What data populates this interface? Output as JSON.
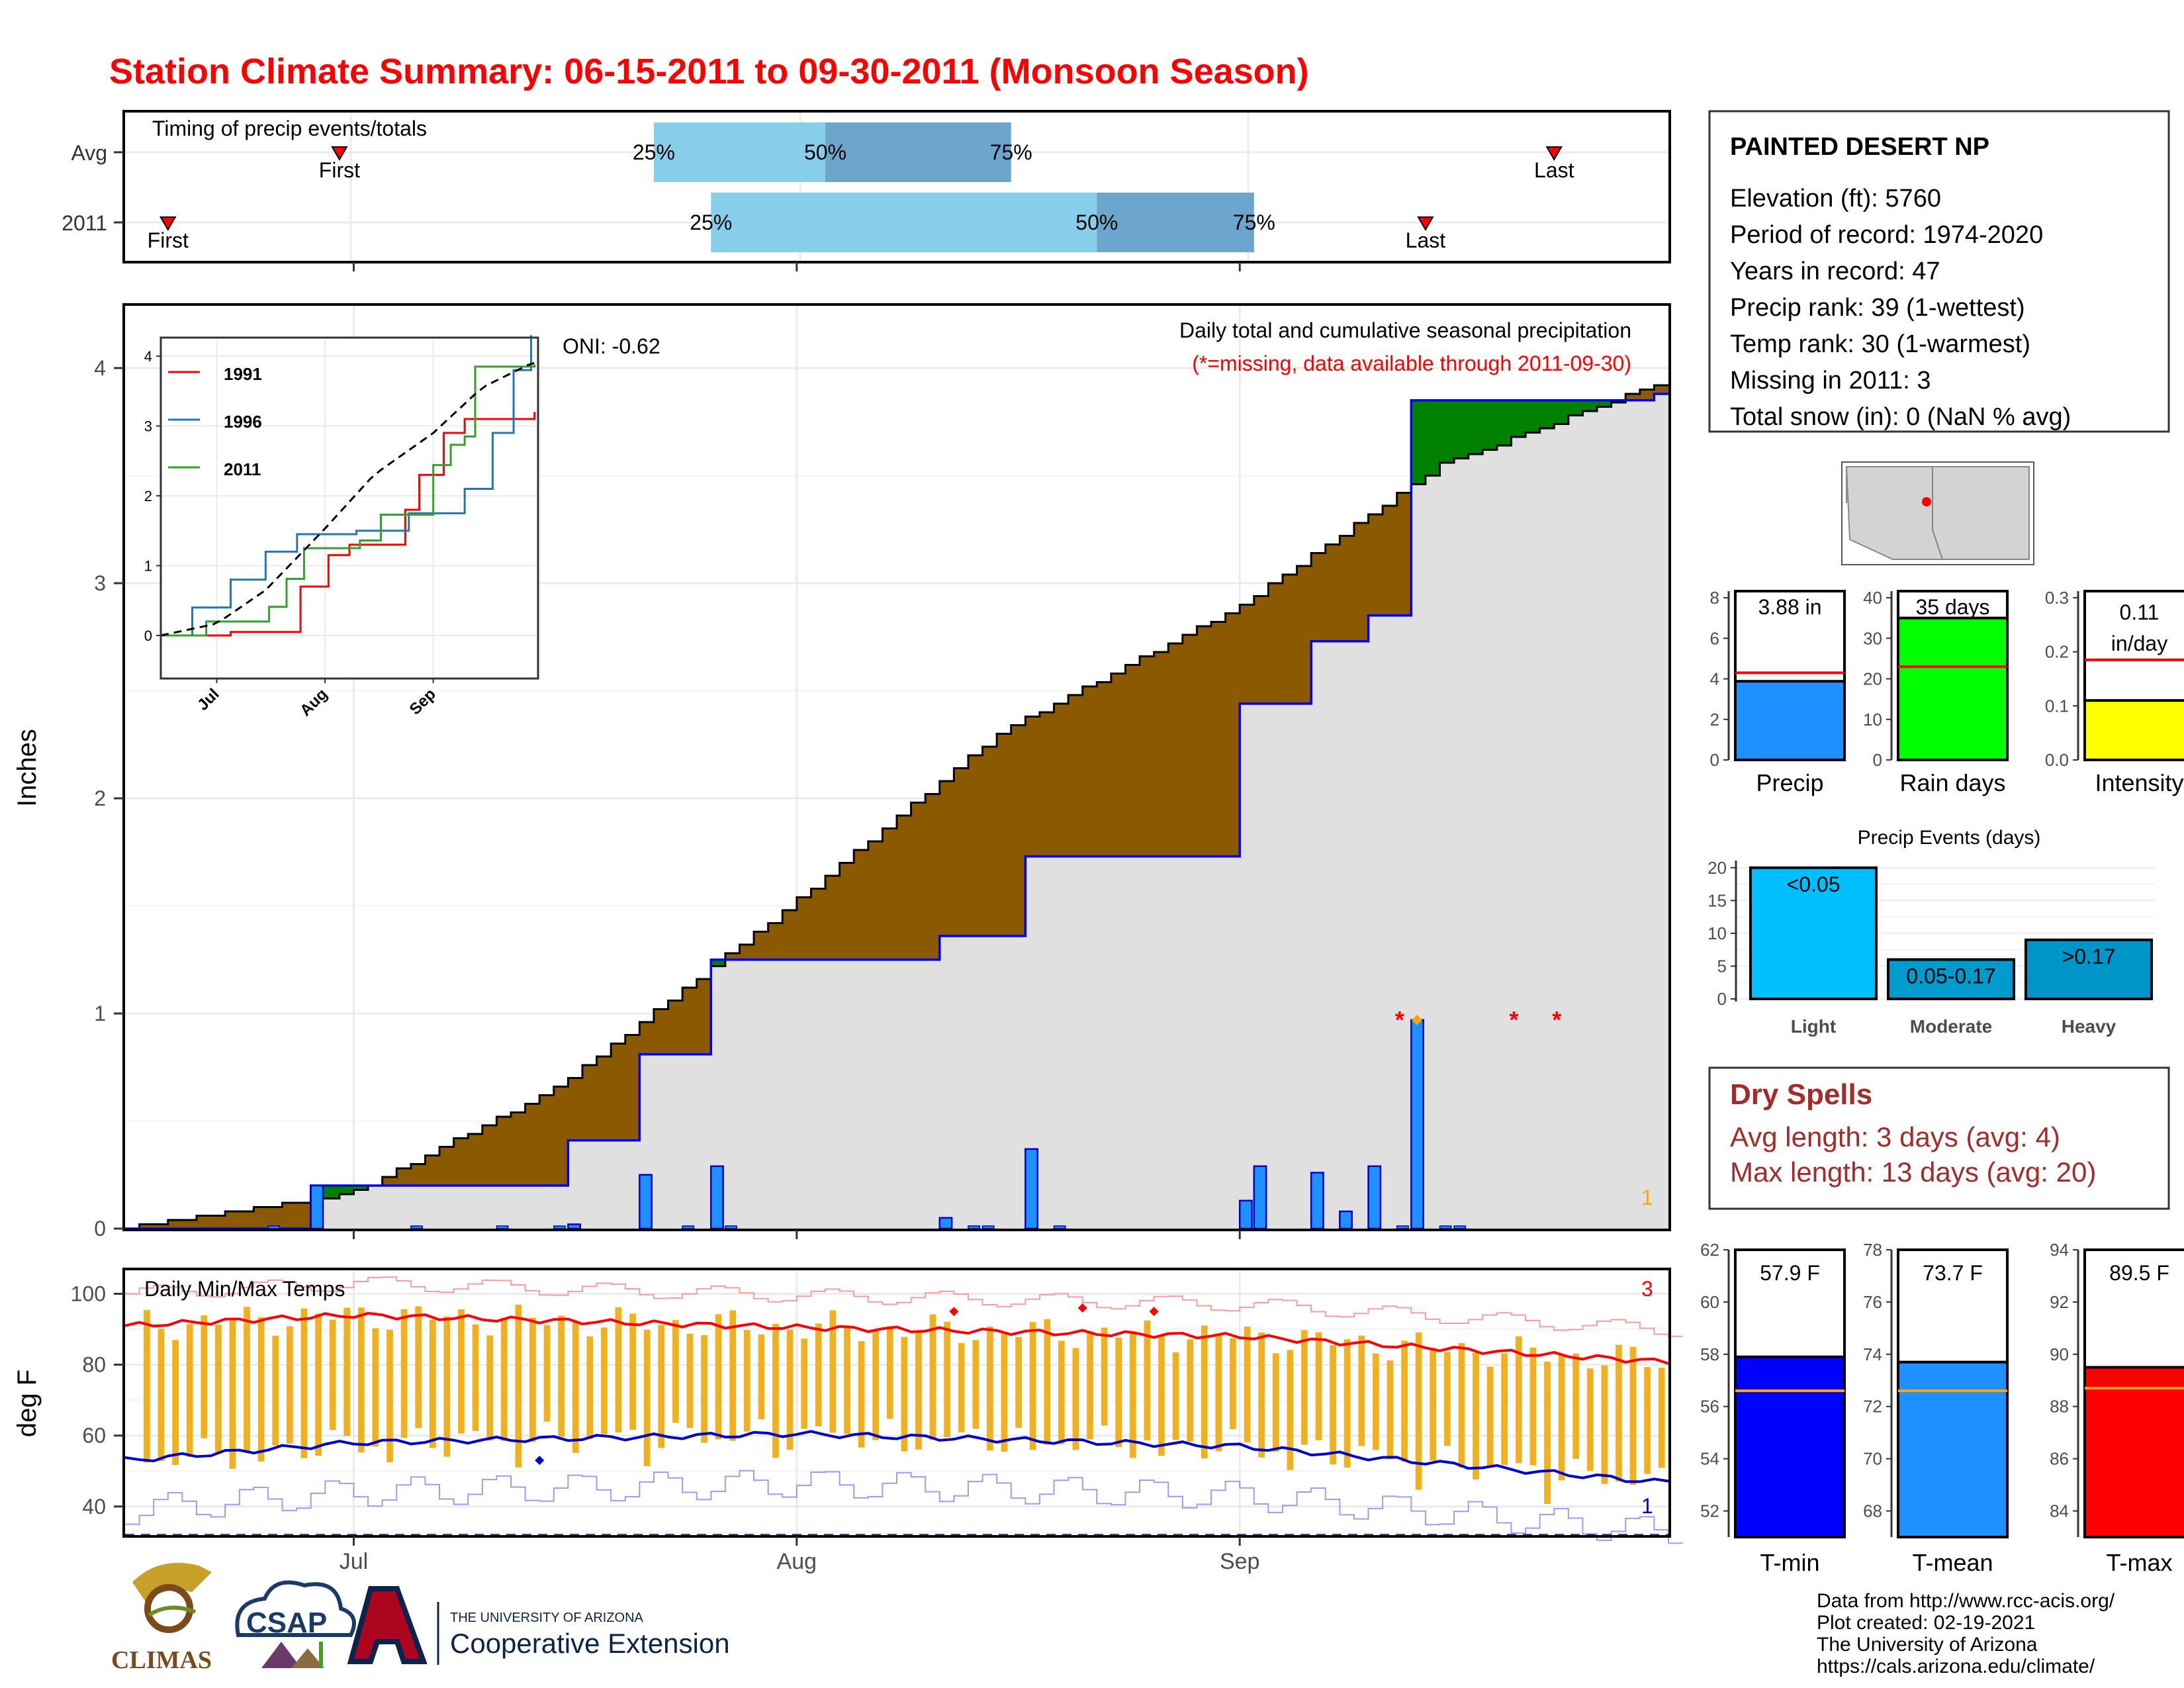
{
  "title": "Station Climate Summary: 06-15-2011 to 09-30-2011 (Monsoon Season)",
  "timing_panel": {
    "label": "Timing of precip events/totals",
    "rows": [
      {
        "name": "Avg",
        "first": "2011-06-30",
        "p25": "2011-07-22",
        "p50": "2011-08-03",
        "p75": "2011-08-16",
        "last": "2011-09-23"
      },
      {
        "name": "2011",
        "first": "2011-06-18",
        "p25": "2011-07-26",
        "p50": "2011-08-22",
        "p75": "2011-09-02",
        "last": "2011-09-14"
      }
    ],
    "first_label": "First",
    "last_label": "Last",
    "p25_label": "25%",
    "p50_label": "50%",
    "p75_label": "75%"
  },
  "main_panel": {
    "ylabel": "Inches",
    "oni": "ONI: -0.62",
    "subtitle": "Daily total and cumulative seasonal precipitation",
    "note": "(*=missing, data available through 2011-09-30)",
    "corner_count": "1",
    "yticks": [
      "0",
      "1",
      "2",
      "3",
      "4"
    ],
    "xticks": [
      "Jul",
      "Aug",
      "Sep"
    ]
  },
  "inset": {
    "legend": [
      "1991",
      "1996",
      "2011"
    ],
    "yticks": [
      "0",
      "1",
      "2",
      "3",
      "4"
    ],
    "xticks": [
      "Jul",
      "Aug",
      "Sep"
    ]
  },
  "temp_panel": {
    "label": "Daily Min/Max Temps",
    "ylabel": "deg F",
    "yticks": [
      "40",
      "60",
      "80",
      "100"
    ],
    "count_top": "3",
    "count_bottom": "1"
  },
  "station": {
    "name": "PAINTED DESERT NP",
    "lines": [
      "Elevation (ft): 5760",
      "Period of record: 1974-2020",
      "Years in record: 47",
      "Precip rank: 39 (1-wettest)",
      "Temp rank: 30 (1-warmest)",
      "Missing in 2011: 3",
      "Total snow (in): 0 (NaN % avg)"
    ]
  },
  "mini_bars": [
    {
      "label": "Precip",
      "value": 3.88,
      "avg": 4.3,
      "text": "3.88 in",
      "ymax": 8,
      "ticks": [
        "0",
        "2",
        "4",
        "6",
        "8"
      ],
      "color": "#1e90ff"
    },
    {
      "label": "Rain days",
      "value": 35,
      "avg": 23,
      "text": "35 days",
      "ymax": 40,
      "ticks": [
        "0",
        "10",
        "20",
        "30",
        "40"
      ],
      "color": "#00ff00"
    },
    {
      "label": "Intensity",
      "value": 0.11,
      "avg": 0.185,
      "text": "0.11 in/day",
      "ymax": 0.3,
      "ticks": [
        "0.0",
        "0.1",
        "0.2",
        "0.3"
      ],
      "color": "#ffff00"
    }
  ],
  "events": {
    "title": "Precip Events (days)",
    "categories": [
      "Light",
      "Moderate",
      "Heavy"
    ],
    "values": [
      20,
      6,
      9
    ],
    "labels": [
      "<0.05",
      "0.05-0.17",
      ">0.17"
    ],
    "ticks": [
      "0",
      "5",
      "10",
      "15",
      "20"
    ]
  },
  "dry_spells": {
    "title": "Dry Spells",
    "avg": "Avg length: 3 days (avg: 4)",
    "max": "Max length: 13 days (avg: 20)"
  },
  "temp_bars": [
    {
      "label": "T-min",
      "value": 57.9,
      "avg": 56.6,
      "text": "57.9 F",
      "range": [
        51,
        62
      ],
      "ticks": [
        "52",
        "54",
        "56",
        "58",
        "60",
        "62"
      ],
      "color": "#0000ff"
    },
    {
      "label": "T-mean",
      "value": 73.7,
      "avg": 72.6,
      "text": "73.7 F",
      "range": [
        67,
        78
      ],
      "ticks": [
        "68",
        "70",
        "72",
        "74",
        "76",
        "78"
      ],
      "color": "#1e90ff"
    },
    {
      "label": "T-max",
      "value": 89.5,
      "avg": 88.7,
      "text": "89.5 F",
      "range": [
        83,
        94
      ],
      "ticks": [
        "84",
        "86",
        "88",
        "90",
        "92",
        "94"
      ],
      "color": "#ff0000"
    }
  ],
  "footer": {
    "lines": [
      "Data from http://www.rcc-acis.org/",
      "Plot created: 02-19-2021",
      "The University of Arizona",
      "https://cals.arizona.edu/climate/"
    ],
    "logo_climas": "CLIMAS",
    "logo_csap": "CSAP",
    "ua_small": "THE UNIVERSITY OF ARIZONA",
    "ua_big": "Cooperative Extension"
  },
  "colors": {
    "title": "#ff0000",
    "brown": "#8b5a00",
    "green": "#008000",
    "blue_bar": "#1e90ff",
    "gray_fill": "#e0e0e0",
    "dry": "#a52a2a"
  },
  "chart_data": [
    {
      "type": "bar",
      "title": "Daily total and cumulative seasonal precipitation",
      "ylabel": "Inches",
      "ylim": [
        0,
        4.3
      ],
      "series": [
        {
          "name": "2011",
          "dates": [
            "2011-06-28",
            "2011-07-16",
            "2011-07-21",
            "2011-07-26",
            "2011-08-11",
            "2011-08-17",
            "2011-09-01",
            "2011-09-02",
            "2011-09-06",
            "2011-09-08",
            "2011-09-10",
            "2011-09-13"
          ],
          "values": [
            0.2,
            0.02,
            0.25,
            0.29,
            0.05,
            0.37,
            0.13,
            0.29,
            0.26,
            0.08,
            0.29,
            0.97
          ]
        }
      ],
      "cumulative_2011": {
        "dates": [
          "2011-06-15",
          "2011-06-28",
          "2011-07-16",
          "2011-07-21",
          "2011-07-26",
          "2011-08-11",
          "2011-08-17",
          "2011-09-01",
          "2011-09-06",
          "2011-09-10",
          "2011-09-13",
          "2011-09-30"
        ],
        "values": [
          0.0,
          0.2,
          0.41,
          0.81,
          1.25,
          1.36,
          1.73,
          2.44,
          2.73,
          2.85,
          3.85,
          3.88
        ]
      },
      "cumulative_avg": {
        "dates": [
          "2011-06-15",
          "2011-07-01",
          "2011-07-15",
          "2011-08-01",
          "2011-08-15",
          "2011-09-01",
          "2011-09-15",
          "2011-09-30"
        ],
        "values": [
          0.0,
          0.17,
          0.65,
          1.53,
          2.3,
          2.9,
          3.55,
          3.92
        ]
      }
    },
    {
      "type": "line",
      "title": "Daily Min/Max Temps",
      "ylabel": "deg F",
      "ylim": [
        31,
        107
      ],
      "series": [
        {
          "name": "avg max",
          "dates": [
            "2011-06-15",
            "2011-07-01",
            "2011-08-01",
            "2011-09-01",
            "2011-09-30"
          ],
          "values": [
            91,
            94,
            90.5,
            88,
            81
          ]
        },
        {
          "name": "avg min",
          "dates": [
            "2011-06-15",
            "2011-07-01",
            "2011-08-01",
            "2011-09-01",
            "2011-09-30"
          ],
          "values": [
            53,
            58,
            60.5,
            57,
            47
          ]
        }
      ]
    }
  ]
}
